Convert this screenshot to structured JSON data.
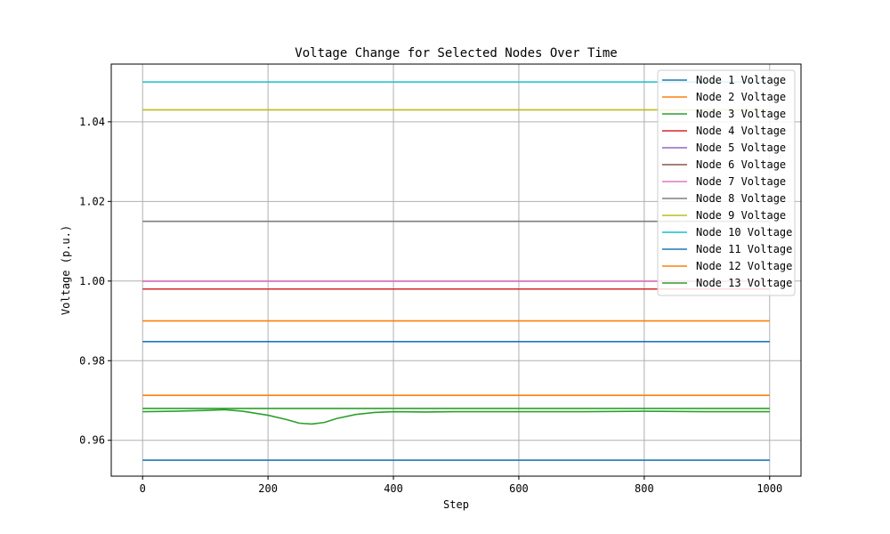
{
  "chart_data": {
    "type": "line",
    "title": "Voltage Change for Selected Nodes Over Time",
    "xlabel": "Step",
    "ylabel": "Voltage (p.u.)",
    "xlim": [
      -50,
      1050
    ],
    "ylim": [
      0.951,
      1.0545
    ],
    "xticks": [
      0,
      200,
      400,
      600,
      800,
      1000
    ],
    "yticks": [
      0.96,
      0.98,
      1.0,
      1.02,
      1.04
    ],
    "ytick_labels": [
      "0.96",
      "0.98",
      "1.00",
      "1.02",
      "1.04"
    ],
    "grid": true,
    "legend_position": "top-right",
    "series": [
      {
        "name": "Node 1 Voltage",
        "color": "#1f77b4",
        "x": [
          0,
          1000
        ],
        "y": [
          0.955,
          0.955
        ]
      },
      {
        "name": "Node 2 Voltage",
        "color": "#ff7f0e",
        "x": [
          0,
          1000
        ],
        "y": [
          0.9713,
          0.9713
        ]
      },
      {
        "name": "Node 3 Voltage",
        "color": "#2ca02c",
        "x": [
          0,
          50,
          100,
          130,
          160,
          200,
          230,
          250,
          270,
          290,
          310,
          340,
          370,
          400,
          450,
          500,
          600,
          700,
          800,
          900,
          1000
        ],
        "y": [
          0.9672,
          0.9673,
          0.9675,
          0.9677,
          0.9673,
          0.9663,
          0.9652,
          0.9643,
          0.9641,
          0.9645,
          0.9655,
          0.9665,
          0.967,
          0.9672,
          0.9671,
          0.9672,
          0.9672,
          0.9672,
          0.9673,
          0.9672,
          0.9672
        ]
      },
      {
        "name": "Node 4 Voltage",
        "color": "#d62728",
        "x": [
          0,
          1000
        ],
        "y": [
          0.998,
          0.998
        ]
      },
      {
        "name": "Node 5 Voltage",
        "color": "#9467bd",
        "x": [
          0,
          1000
        ],
        "y": [
          1.0,
          1.0
        ]
      },
      {
        "name": "Node 6 Voltage",
        "color": "#8c564b",
        "x": [
          0,
          1000
        ],
        "y": [
          1.0,
          1.0
        ]
      },
      {
        "name": "Node 7 Voltage",
        "color": "#e377c2",
        "x": [
          0,
          1000
        ],
        "y": [
          1.0,
          1.0
        ]
      },
      {
        "name": "Node 8 Voltage",
        "color": "#7f7f7f",
        "x": [
          0,
          1000
        ],
        "y": [
          1.015,
          1.015
        ]
      },
      {
        "name": "Node 9 Voltage",
        "color": "#bcbd22",
        "x": [
          0,
          1000
        ],
        "y": [
          1.043,
          1.043
        ]
      },
      {
        "name": "Node 10 Voltage",
        "color": "#17becf",
        "x": [
          0,
          1000
        ],
        "y": [
          1.05,
          1.05
        ]
      },
      {
        "name": "Node 11 Voltage",
        "color": "#1f77b4",
        "x": [
          0,
          1000
        ],
        "y": [
          0.9848,
          0.9848
        ]
      },
      {
        "name": "Node 12 Voltage",
        "color": "#ff7f0e",
        "x": [
          0,
          1000
        ],
        "y": [
          0.99,
          0.99
        ]
      },
      {
        "name": "Node 13 Voltage",
        "color": "#2ca02c",
        "x": [
          0,
          1000
        ],
        "y": [
          0.968,
          0.968
        ]
      }
    ]
  }
}
